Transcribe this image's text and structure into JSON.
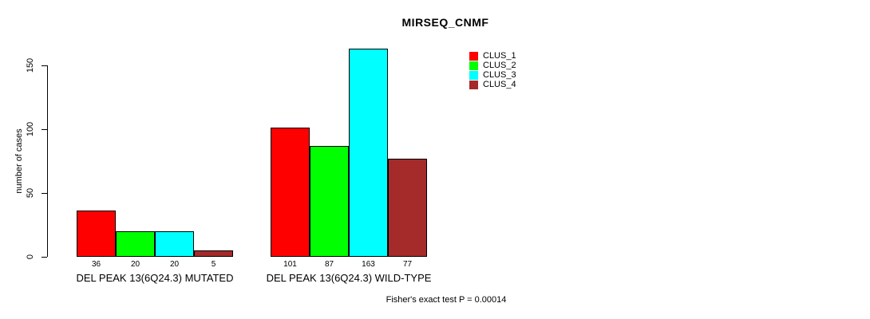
{
  "chart_data": {
    "type": "bar",
    "title": "MIRSEQ_CNMF",
    "ylabel": "number of cases",
    "xlabel": "",
    "ylim": [
      0,
      163
    ],
    "yticks": [
      0,
      50,
      100,
      150
    ],
    "grid": false,
    "legend_position": "top-right-inside",
    "categories": [
      "DEL PEAK 13(6Q24.3) MUTATED",
      "DEL PEAK 13(6Q24.3) WILD-TYPE"
    ],
    "series": [
      {
        "name": "CLUS_1",
        "color": "#ff0000",
        "values": [
          36,
          101
        ]
      },
      {
        "name": "CLUS_2",
        "color": "#00ff00",
        "values": [
          20,
          87
        ]
      },
      {
        "name": "CLUS_3",
        "color": "#00ffff",
        "values": [
          20,
          163
        ]
      },
      {
        "name": "CLUS_4",
        "color": "#a52a2a",
        "values": [
          5,
          77
        ]
      }
    ],
    "bar_border_color": "#000000",
    "annotation": "Fisher's exact test P = 0.00014"
  }
}
